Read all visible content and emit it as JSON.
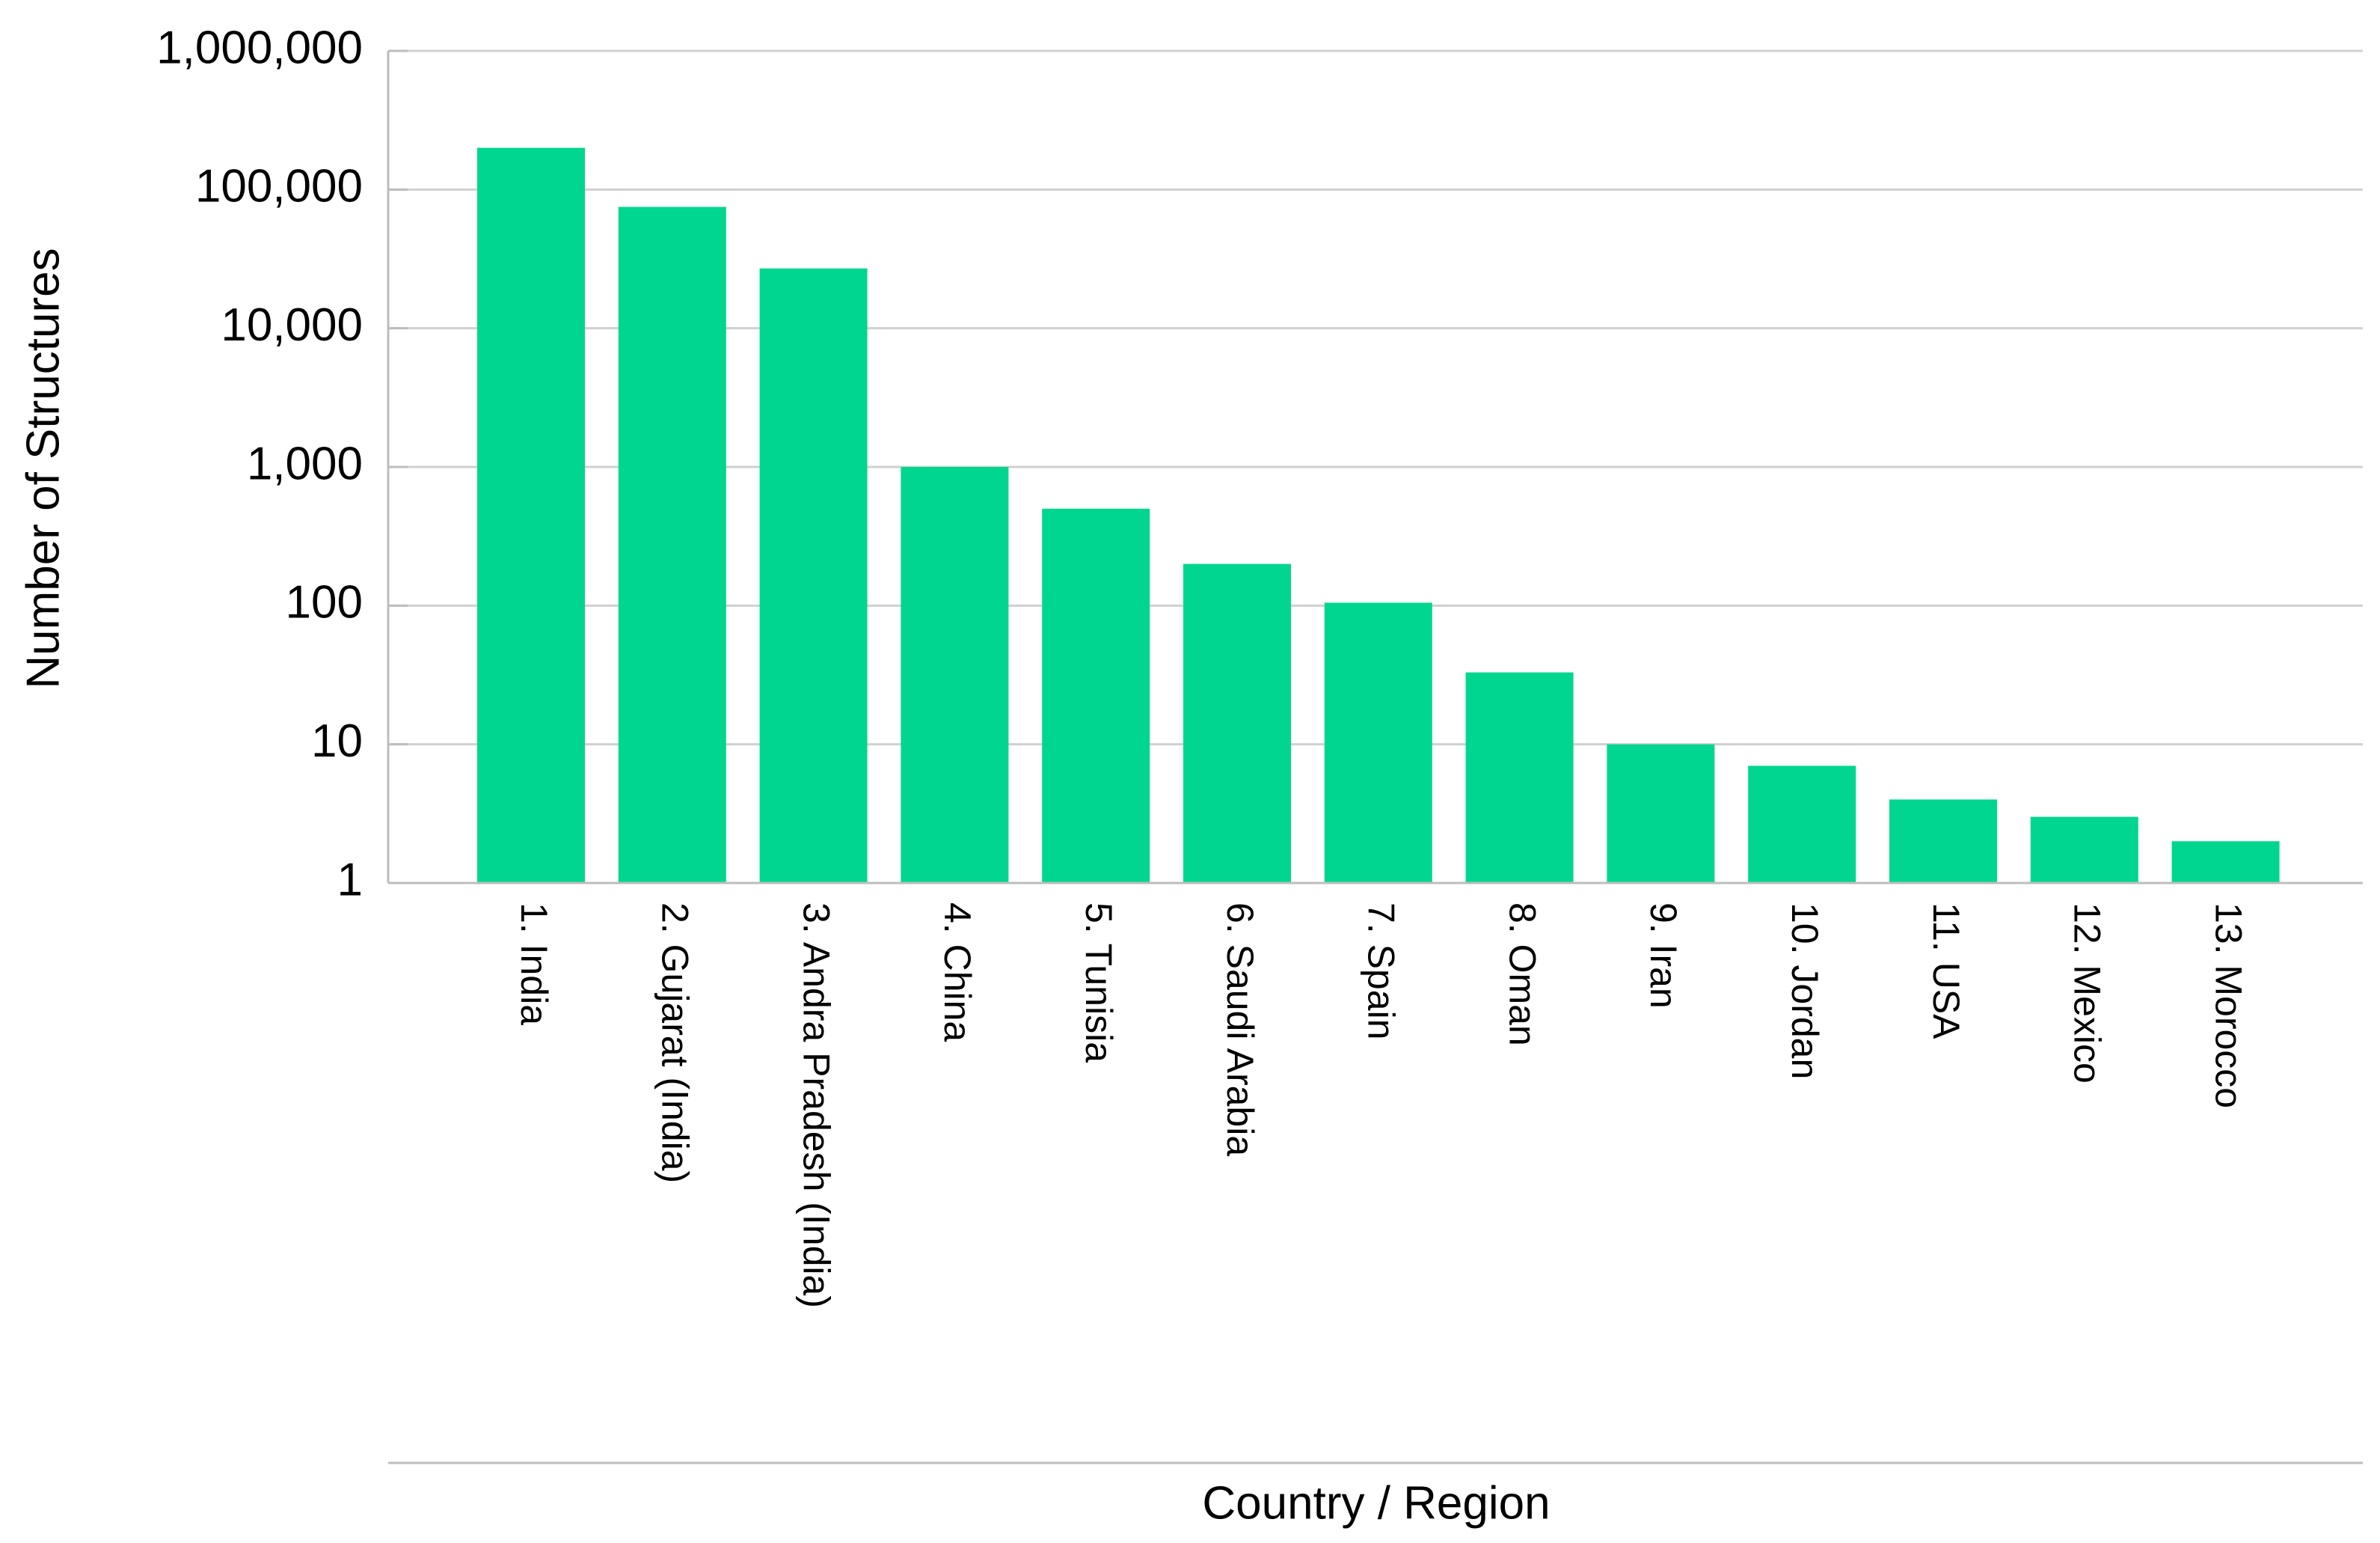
{
  "chart_data": {
    "type": "bar",
    "x_label": "Country / Region",
    "y_label": "Number of Structures",
    "categories": [
      "1. India",
      "2. Gujarat (India)",
      "3. Andra Pradesh (India)",
      "4. China",
      "5. Tunisia",
      "6. Saudi Arabia",
      "7. Spain",
      "8. Oman",
      "9. Iran",
      "10. Jordan",
      "11. USA",
      "12. Mexico",
      "13. Morocco"
    ],
    "values": [
      200000,
      75000,
      27000,
      1000,
      500,
      200,
      105,
      33,
      10,
      7,
      4,
      3,
      2
    ],
    "color": "#00d68f",
    "log_scale": true,
    "ylim": [
      1,
      1000000
    ],
    "yticks": [
      1,
      10,
      100,
      {
        "value": 1000,
        "label": "1,000"
      },
      {
        "value": 10000,
        "label": "10,000"
      },
      {
        "value": 100000,
        "label": "100,000"
      },
      {
        "value": 1000000,
        "label": "1,000,000"
      }
    ],
    "grid": true
  }
}
